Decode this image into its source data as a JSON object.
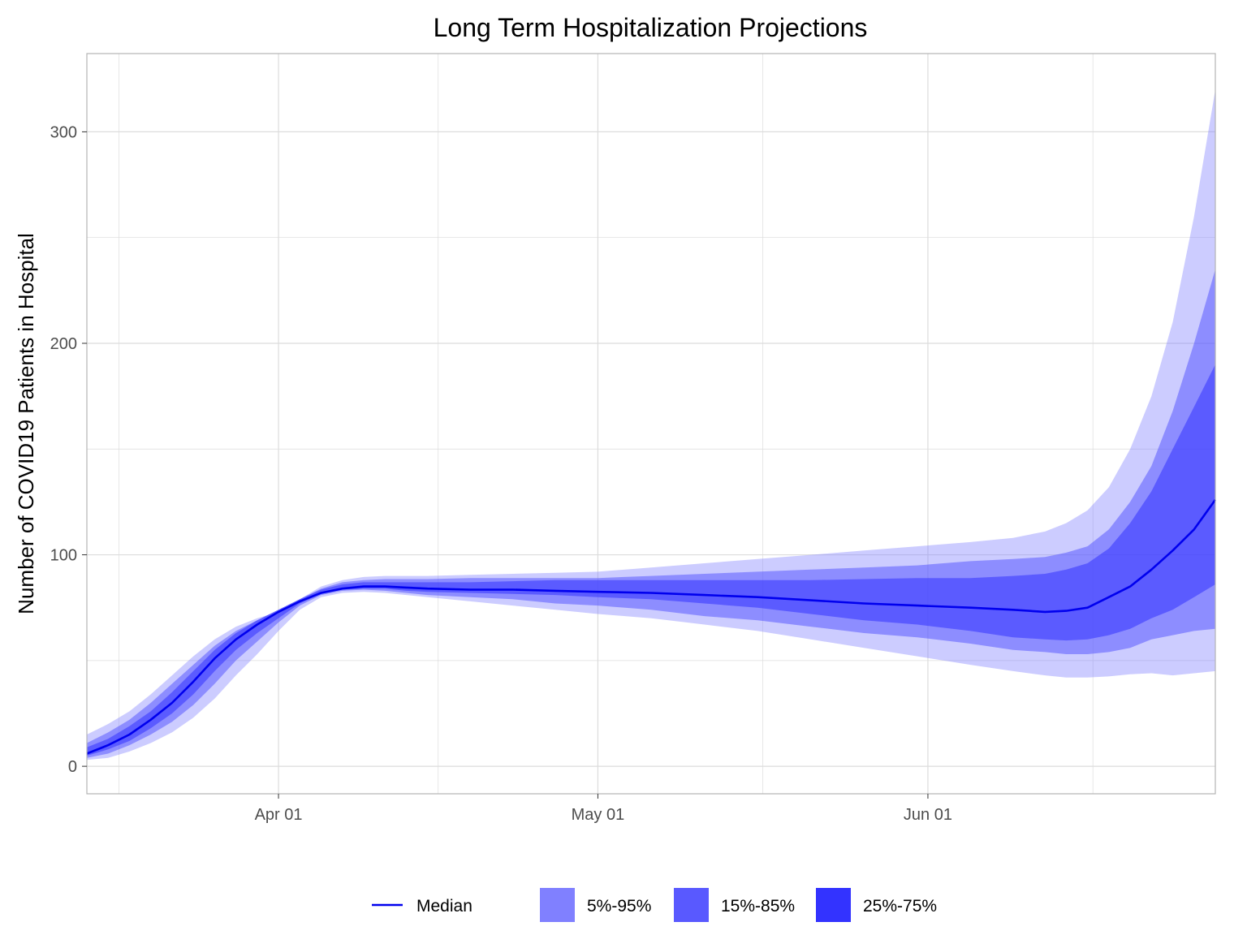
{
  "chart_data": {
    "type": "area",
    "title": "Long Term Hospitalization Projections",
    "xlabel": "",
    "ylabel": "Number of COVID19 Patients in Hospital",
    "x_tick_labels": [
      {
        "date": "2020-04-01",
        "label": "Apr 01"
      },
      {
        "date": "2020-05-01",
        "label": "May 01"
      },
      {
        "date": "2020-06-01",
        "label": "Jun 01"
      }
    ],
    "y_ticks": [
      0,
      100,
      200,
      300
    ],
    "xlim": [
      "2020-03-14",
      "2020-06-28"
    ],
    "ylim": [
      -13,
      337
    ],
    "grid": true,
    "legend_position": "bottom",
    "colors": {
      "median": "#0000ee",
      "band_5_95": "#8080ff",
      "band_15_85": "#5959ff",
      "band_25_75": "#3333ff",
      "grid": "#dcdcdc",
      "panel_border": "#b3b3b3"
    },
    "legend": [
      {
        "key": "median",
        "label": "Median"
      },
      {
        "key": "band_5_95",
        "label": "5%-95%"
      },
      {
        "key": "band_15_85",
        "label": "15%-85%"
      },
      {
        "key": "band_25_75",
        "label": "25%-75%"
      }
    ],
    "x": [
      "2020-03-14",
      "2020-03-16",
      "2020-03-18",
      "2020-03-20",
      "2020-03-22",
      "2020-03-24",
      "2020-03-26",
      "2020-03-28",
      "2020-03-30",
      "2020-04-01",
      "2020-04-03",
      "2020-04-05",
      "2020-04-07",
      "2020-04-09",
      "2020-04-11",
      "2020-04-13",
      "2020-04-15",
      "2020-04-19",
      "2020-04-23",
      "2020-04-27",
      "2020-05-01",
      "2020-05-06",
      "2020-05-11",
      "2020-05-16",
      "2020-05-21",
      "2020-05-26",
      "2020-05-31",
      "2020-06-05",
      "2020-06-09",
      "2020-06-12",
      "2020-06-14",
      "2020-06-16",
      "2020-06-18",
      "2020-06-20",
      "2020-06-22",
      "2020-06-24",
      "2020-06-26",
      "2020-06-28"
    ],
    "series": [
      {
        "name": "Median",
        "key": "median",
        "values": [
          6,
          10,
          15,
          22,
          30,
          40,
          51,
          60,
          67,
          73,
          78,
          82,
          84,
          85,
          85,
          84.5,
          84,
          83.5,
          83.5,
          83,
          82.5,
          82,
          81,
          80,
          78.5,
          77,
          76,
          75,
          74,
          73,
          73.5,
          75,
          80,
          85,
          93,
          102,
          112,
          126
        ]
      },
      {
        "name": "5%-95%",
        "key": "band_5_95",
        "lower": [
          3,
          4,
          7,
          11,
          16,
          23,
          32,
          43,
          53,
          64,
          74,
          80,
          82,
          82.5,
          82,
          81,
          80,
          78,
          76,
          74,
          72,
          70,
          67,
          64,
          60,
          56,
          52,
          48,
          45,
          43,
          42,
          42,
          42.5,
          43.5,
          44,
          43,
          44,
          45
        ],
        "upper": [
          15,
          20,
          26,
          34,
          43,
          52,
          60,
          66,
          70,
          73,
          79,
          85,
          88,
          89.5,
          90,
          90,
          90,
          90.5,
          91,
          91.5,
          92,
          94,
          96,
          98,
          100,
          102,
          104,
          106,
          108,
          111,
          115,
          121,
          132,
          150,
          175,
          210,
          260,
          320
        ]
      },
      {
        "name": "15%-85%",
        "key": "band_15_85",
        "lower": [
          4,
          6,
          10,
          15,
          21,
          29,
          39,
          50,
          59,
          68,
          76,
          81,
          83,
          83.5,
          83,
          82,
          81,
          80,
          79,
          77,
          76,
          74,
          71,
          69,
          66,
          63,
          61,
          58,
          55,
          54,
          53,
          53,
          54,
          56,
          60,
          62,
          64,
          65
        ]
      },
      {
        "name": "25%-75%",
        "key": "band_25_75",
        "lower": [
          5,
          8,
          12,
          18,
          25,
          34,
          45,
          55,
          63,
          70,
          77,
          81.5,
          83.5,
          84,
          84,
          83,
          82.5,
          82,
          81.5,
          81,
          80,
          79,
          77,
          75,
          72,
          69,
          67,
          64,
          61,
          60,
          59.5,
          60,
          62,
          65,
          70,
          74,
          80,
          86
        ],
        "upper": [
          9,
          13,
          19,
          26,
          35,
          45,
          55,
          63,
          69,
          74,
          79,
          83.5,
          86,
          87,
          87,
          87,
          87,
          87,
          87.5,
          88,
          88,
          88,
          88,
          88,
          88,
          88.5,
          89,
          89,
          90,
          91,
          93,
          96,
          103,
          115,
          130,
          150,
          170,
          190
        ]
      }
    ],
    "band_15_85_upper": [
      11,
      16,
      22,
      30,
      39,
      48,
      57,
      64,
      69,
      74,
      79,
      84,
      87,
      88,
      88.5,
      88.5,
      88.5,
      89,
      89,
      89,
      89,
      90,
      91,
      92,
      93,
      94,
      95,
      97,
      98,
      99,
      101,
      104,
      112,
      125,
      142,
      168,
      200,
      235
    ]
  }
}
